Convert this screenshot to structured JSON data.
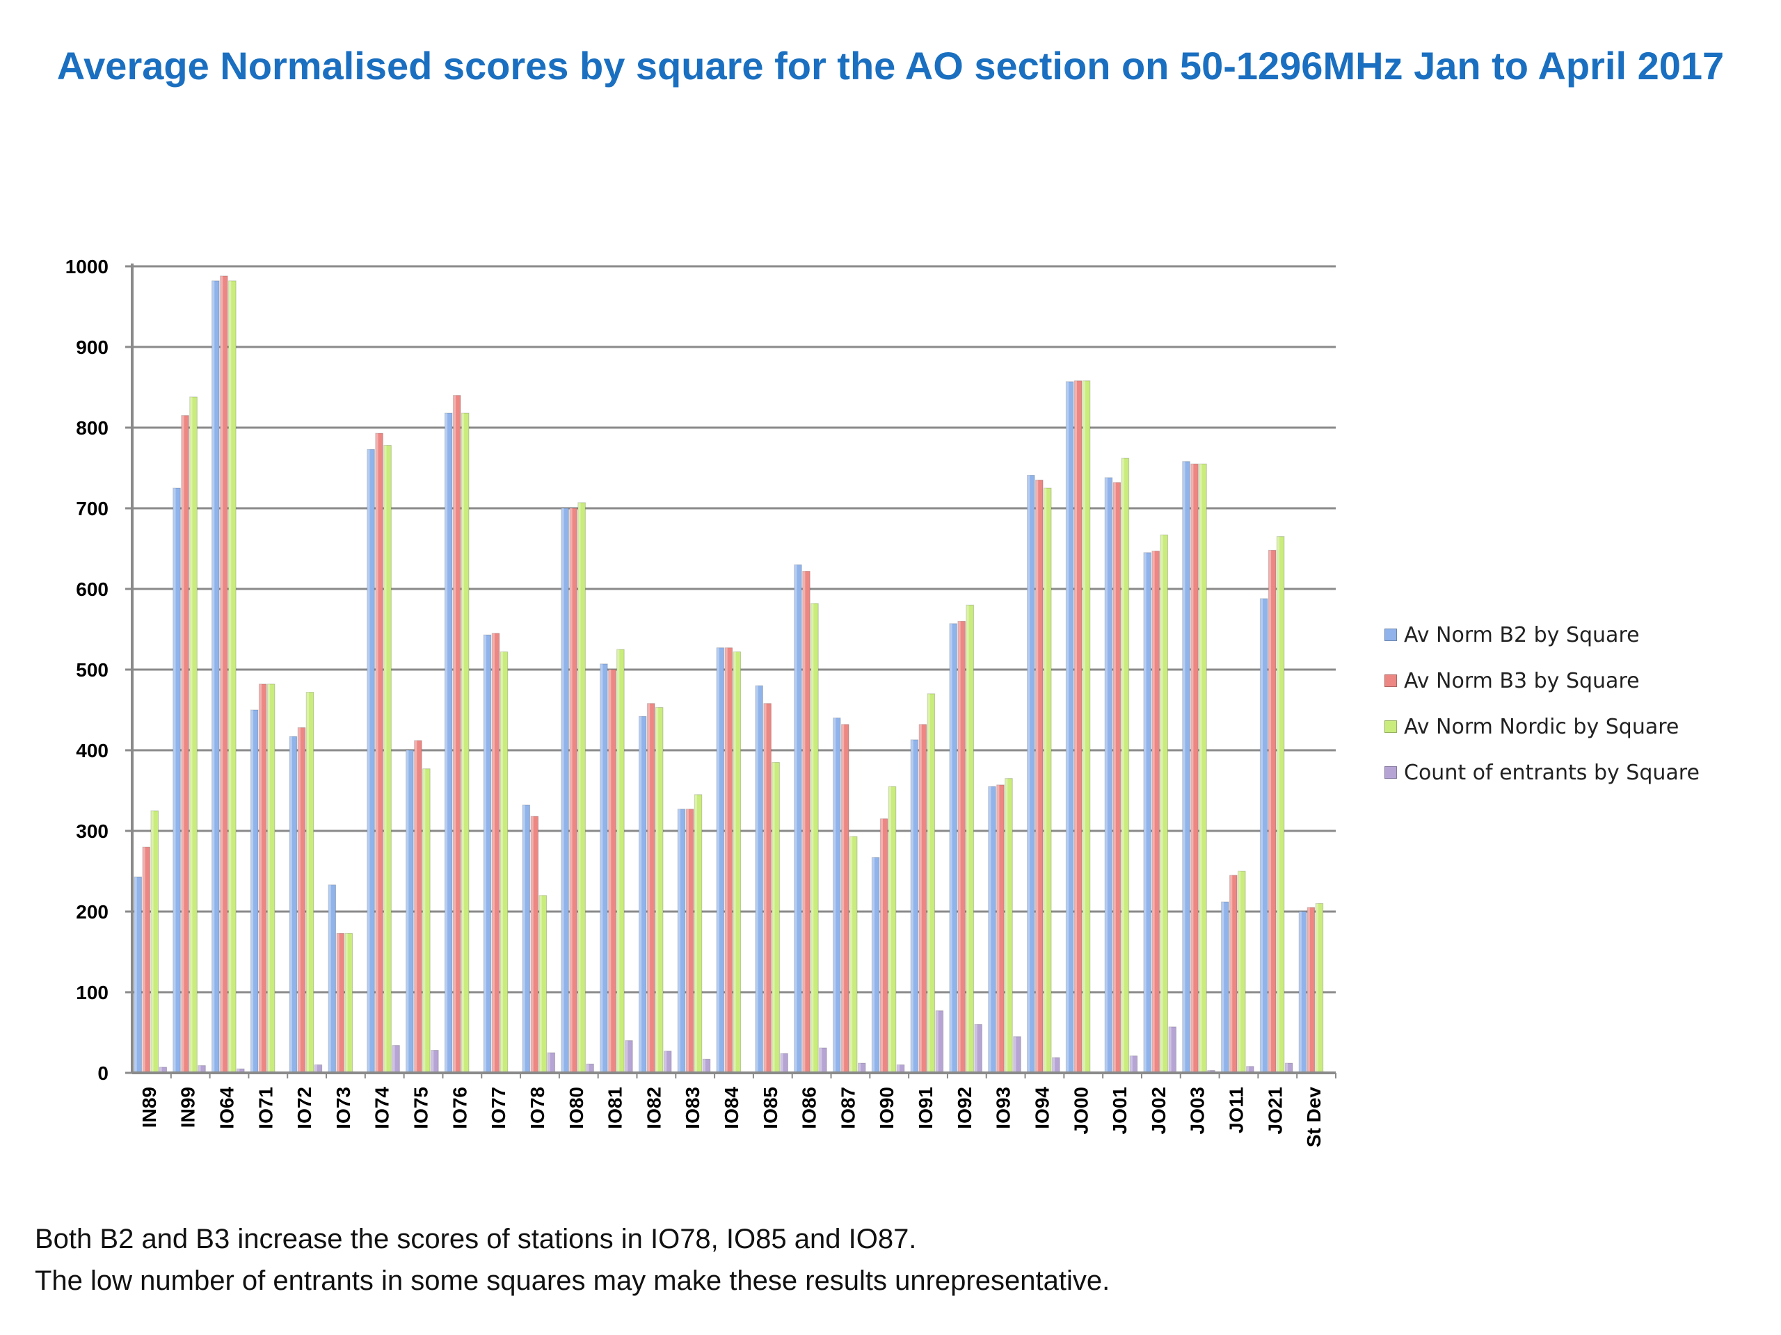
{
  "chart_data": {
    "type": "bar",
    "title": "Average Normalised scores by square for the AO section on 50-1296MHz Jan to April 2017",
    "categories": [
      "IN89",
      "IN99",
      "IO64",
      "IO71",
      "IO72",
      "IO73",
      "IO74",
      "IO75",
      "IO76",
      "IO77",
      "IO78",
      "IO80",
      "IO81",
      "IO82",
      "IO83",
      "IO84",
      "IO85",
      "IO86",
      "IO87",
      "IO90",
      "IO91",
      "IO92",
      "IO93",
      "IO94",
      "JO00",
      "JO01",
      "JO02",
      "JO03",
      "JO11",
      "JO21",
      "St Dev"
    ],
    "series": [
      {
        "name": "Av Norm B2 by Square",
        "color": "#8fb3ea",
        "values": [
          243,
          725,
          982,
          450,
          417,
          233,
          773,
          400,
          818,
          543,
          332,
          700,
          507,
          442,
          327,
          527,
          480,
          630,
          440,
          267,
          413,
          557,
          355,
          741,
          857,
          738,
          645,
          758,
          212,
          588,
          200
        ]
      },
      {
        "name": "Av Norm B3 by Square",
        "color": "#ec8784",
        "values": [
          280,
          815,
          988,
          482,
          428,
          173,
          793,
          412,
          840,
          545,
          318,
          700,
          500,
          458,
          327,
          527,
          458,
          622,
          432,
          315,
          432,
          560,
          357,
          735,
          858,
          732,
          647,
          755,
          245,
          648,
          205
        ]
      },
      {
        "name": "Av Norm Nordic by Square",
        "color": "#c9ec7d",
        "values": [
          325,
          838,
          982,
          482,
          472,
          173,
          778,
          377,
          818,
          522,
          220,
          707,
          525,
          453,
          345,
          522,
          385,
          582,
          293,
          355,
          470,
          580,
          365,
          725,
          858,
          762,
          667,
          755,
          250,
          665,
          210
        ]
      },
      {
        "name": "Count of entrants by Square",
        "color": "#b5a4d4",
        "values": [
          7,
          9,
          5,
          0,
          10,
          0,
          34,
          28,
          0,
          0,
          25,
          11,
          40,
          27,
          17,
          0,
          24,
          31,
          12,
          10,
          77,
          60,
          45,
          19,
          0,
          21,
          57,
          3,
          8,
          12,
          0
        ]
      }
    ],
    "ylim": [
      0,
      1000
    ],
    "yticks": [
      0,
      100,
      200,
      300,
      400,
      500,
      600,
      700,
      800,
      900,
      1000
    ],
    "legend_position": "right",
    "grid": true
  },
  "notes": [
    "Both B2 and B3 increase the scores of stations in IO78, IO85 and IO87.",
    "The low number of entrants in some squares may make these results unrepresentative."
  ]
}
